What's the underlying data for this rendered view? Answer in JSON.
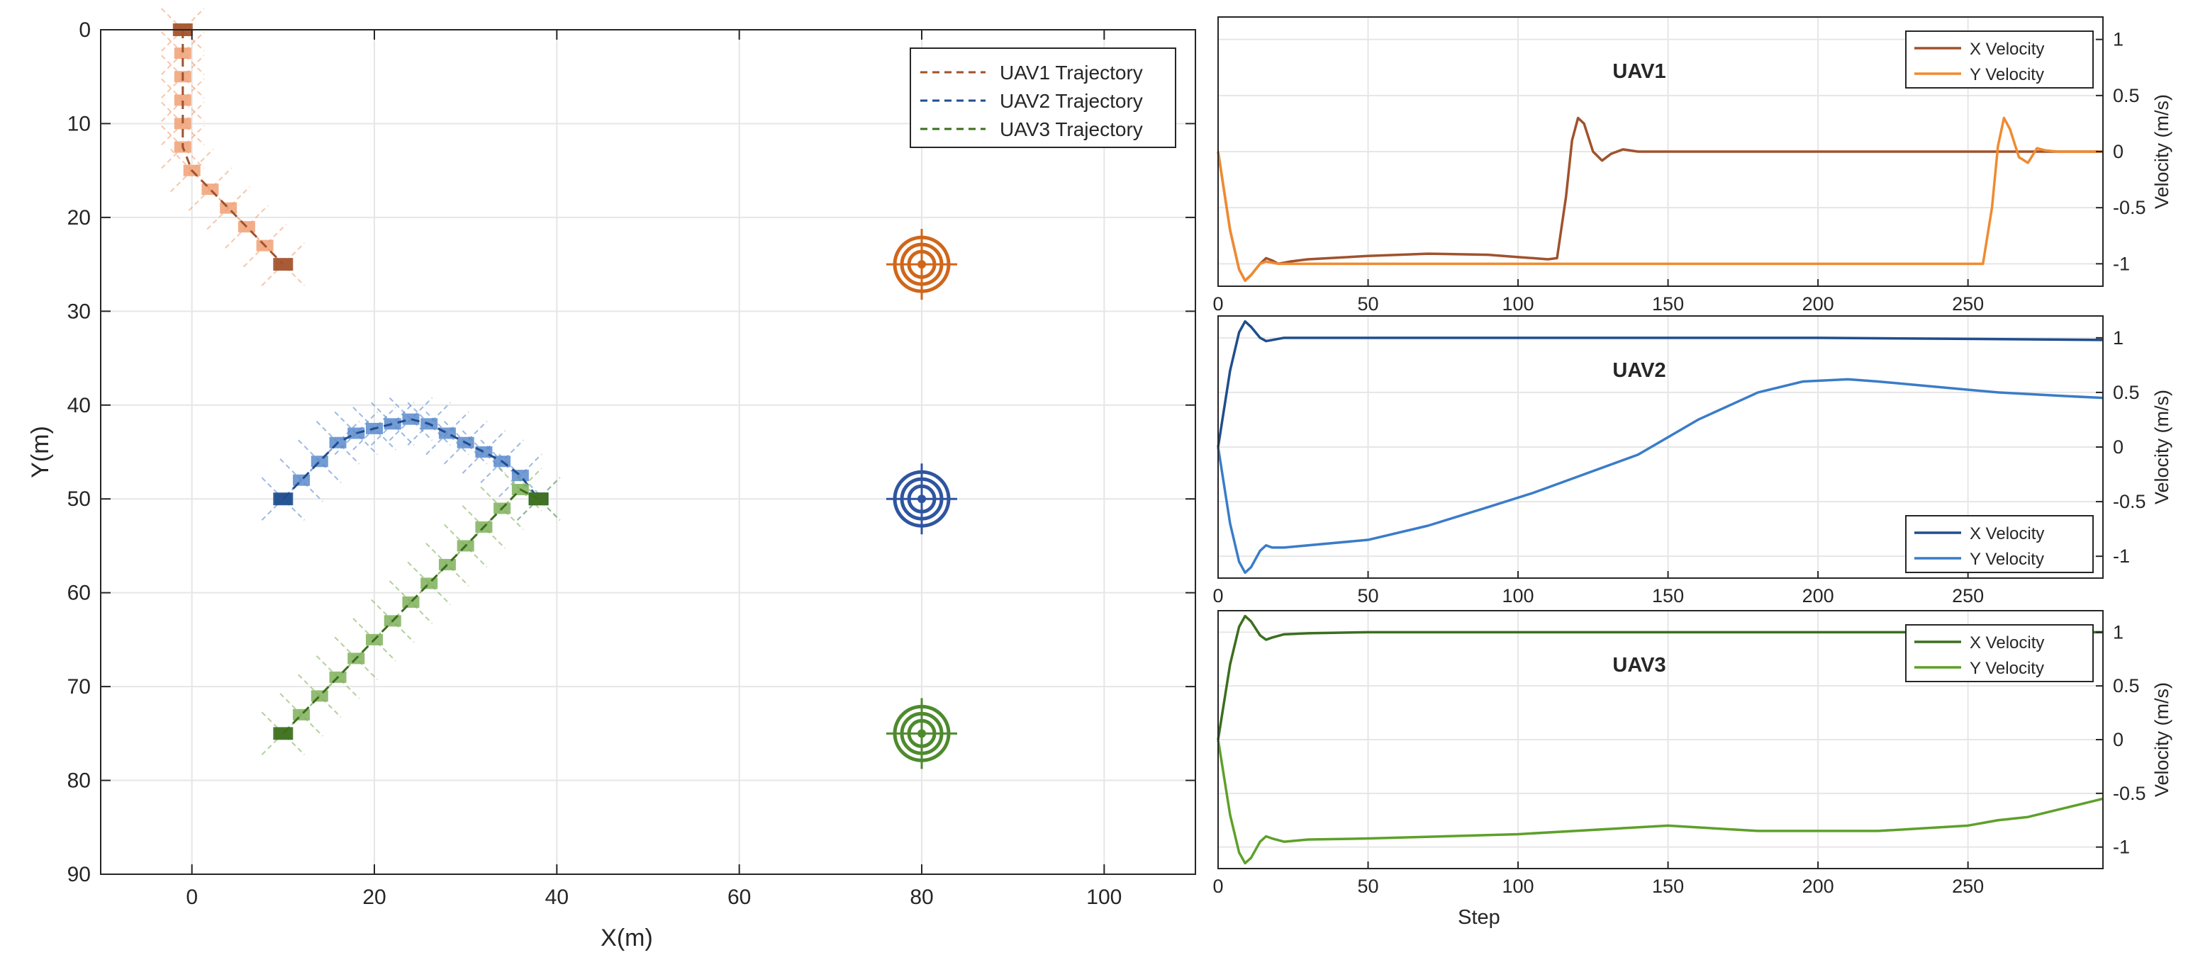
{
  "colors": {
    "uav1": "#A0522D",
    "uav1_light": "#F0A074",
    "uav1_y": "#F08A30",
    "uav2": "#1F4E8C",
    "uav2_light": "#5B8ACD",
    "uav2_y": "#3A7CC8",
    "uav3": "#3C6E1E",
    "uav3_light": "#7FB05A",
    "uav3_y": "#5EA02A",
    "target1": "#D0661A",
    "target2": "#2F55A0",
    "target3": "#4E8A2E",
    "grid": "#E6E6E6",
    "axis": "#262626"
  },
  "chart_data": [
    {
      "type": "scatter",
      "xlabel": "X(m)",
      "ylabel": "Y(m)",
      "xlim": [
        -10,
        110
      ],
      "ylim": [
        0,
        90
      ],
      "y_reversed": true,
      "grid": true,
      "xticks": [
        "0",
        "20",
        "40",
        "60",
        "80",
        "100"
      ],
      "yticks": [
        "0",
        "10",
        "20",
        "30",
        "40",
        "50",
        "60",
        "70",
        "80",
        "90"
      ],
      "legend_position": "top-right",
      "legend": [
        "UAV1 Trajectory",
        "UAV2 Trajectory",
        "UAV3 Trajectory"
      ],
      "series": [
        {
          "name": "UAV1 Trajectory",
          "color": "uav1",
          "x": [
            -1,
            -1,
            -1,
            -1,
            -1,
            -1,
            0,
            2,
            4,
            6,
            8,
            10
          ],
          "y": [
            0,
            2.5,
            5,
            7.5,
            10,
            12.5,
            15,
            17,
            19,
            21,
            23,
            25
          ]
        },
        {
          "name": "UAV2 Trajectory",
          "color": "uav2",
          "x": [
            10,
            12,
            14,
            16,
            18,
            20,
            22,
            24,
            26,
            28,
            30,
            32,
            34,
            36,
            38
          ],
          "y": [
            50,
            48,
            46,
            44,
            43,
            42.5,
            42,
            41.5,
            42,
            43,
            44,
            45,
            46,
            47.5,
            50
          ]
        },
        {
          "name": "UAV3 Trajectory",
          "color": "uav3",
          "x": [
            10,
            12,
            14,
            16,
            18,
            20,
            22,
            24,
            26,
            28,
            30,
            32,
            34,
            36,
            38
          ],
          "y": [
            75,
            73,
            71,
            69,
            67,
            65,
            63,
            61,
            59,
            57,
            55,
            53,
            51,
            49,
            50
          ]
        }
      ],
      "targets": [
        {
          "x": 80,
          "y": 25,
          "color": "target1"
        },
        {
          "x": 80,
          "y": 50,
          "color": "target2"
        },
        {
          "x": 80,
          "y": 75,
          "color": "target3"
        }
      ]
    },
    {
      "type": "line",
      "title": "UAV1",
      "xlim": [
        0,
        295
      ],
      "ylim": [
        -1.2,
        1.2
      ],
      "xticks": [
        "0",
        "50",
        "100",
        "150",
        "200",
        "250"
      ],
      "yticks": [
        "1",
        "0.5",
        "0",
        "-0.5",
        "-1"
      ],
      "ylabel": "Velocity (m/s)",
      "legend_position": "top-right",
      "series": [
        {
          "name": "X Velocity",
          "color": "uav1",
          "x": [
            0,
            4,
            7,
            9,
            11,
            14,
            16,
            18,
            20,
            24,
            30,
            50,
            70,
            90,
            100,
            105,
            110,
            113,
            116,
            118,
            120,
            122,
            125,
            128,
            131,
            135,
            140,
            150,
            200,
            250,
            295
          ],
          "y": [
            0,
            -0.7,
            -1.05,
            -1.15,
            -1.1,
            -1.0,
            -0.95,
            -0.97,
            -1.0,
            -0.98,
            -0.96,
            -0.93,
            -0.91,
            -0.92,
            -0.94,
            -0.95,
            -0.96,
            -0.95,
            -0.4,
            0.1,
            0.3,
            0.25,
            0.0,
            -0.08,
            -0.02,
            0.02,
            0.0,
            0.0,
            0.0,
            0.0,
            0.0
          ]
        },
        {
          "name": "Y Velocity",
          "color": "uav1_y",
          "x": [
            0,
            4,
            7,
            9,
            11,
            14,
            16,
            18,
            20,
            24,
            30,
            100,
            200,
            250,
            255,
            258,
            260,
            262,
            264,
            267,
            270,
            273,
            276,
            280,
            295
          ],
          "y": [
            0,
            -0.7,
            -1.05,
            -1.15,
            -1.1,
            -1.0,
            -0.98,
            -0.99,
            -1.0,
            -1.0,
            -1.0,
            -1.0,
            -1.0,
            -1.0,
            -1.0,
            -0.5,
            0.05,
            0.3,
            0.2,
            -0.05,
            -0.1,
            0.03,
            0.01,
            0.0,
            0.0
          ]
        }
      ]
    },
    {
      "type": "line",
      "title": "UAV2",
      "xlim": [
        0,
        295
      ],
      "ylim": [
        -1.2,
        1.2
      ],
      "xticks": [
        "0",
        "50",
        "100",
        "150",
        "200",
        "250"
      ],
      "yticks": [
        "1",
        "0.5",
        "0",
        "-0.5",
        "-1"
      ],
      "ylabel": "Velocity (m/s)",
      "legend_position": "bottom-right",
      "series": [
        {
          "name": "X Velocity",
          "color": "uav2",
          "x": [
            0,
            4,
            7,
            9,
            11,
            14,
            16,
            18,
            22,
            30,
            50,
            100,
            150,
            200,
            250,
            295
          ],
          "y": [
            0,
            0.7,
            1.05,
            1.15,
            1.1,
            1.0,
            0.97,
            0.98,
            1.0,
            1.0,
            1.0,
            1.0,
            1.0,
            1.0,
            0.99,
            0.98
          ]
        },
        {
          "name": "Y Velocity",
          "color": "uav2_y",
          "x": [
            0,
            4,
            7,
            9,
            11,
            14,
            16,
            18,
            22,
            30,
            50,
            70,
            90,
            105,
            120,
            140,
            160,
            180,
            195,
            210,
            220,
            240,
            260,
            280,
            295
          ],
          "y": [
            0,
            -0.7,
            -1.05,
            -1.15,
            -1.1,
            -0.95,
            -0.9,
            -0.92,
            -0.92,
            -0.9,
            -0.85,
            -0.72,
            -0.55,
            -0.42,
            -0.27,
            -0.07,
            0.25,
            0.5,
            0.6,
            0.62,
            0.6,
            0.55,
            0.5,
            0.47,
            0.45
          ]
        }
      ]
    },
    {
      "type": "line",
      "title": "UAV3",
      "xlim": [
        0,
        295
      ],
      "ylim": [
        -1.2,
        1.2
      ],
      "xticks": [
        "0",
        "50",
        "100",
        "150",
        "200",
        "250"
      ],
      "yticks": [
        "1",
        "0.5",
        "0",
        "-0.5",
        "-1"
      ],
      "ylabel": "Velocity (m/s)",
      "xlabel": "Step",
      "legend_position": "top-right",
      "series": [
        {
          "name": "X Velocity",
          "color": "uav3",
          "x": [
            0,
            4,
            7,
            9,
            11,
            14,
            16,
            18,
            22,
            30,
            50,
            100,
            150,
            200,
            250,
            295
          ],
          "y": [
            0,
            0.7,
            1.05,
            1.15,
            1.1,
            0.97,
            0.93,
            0.95,
            0.98,
            0.99,
            1.0,
            1.0,
            1.0,
            1.0,
            1.0,
            1.0
          ]
        },
        {
          "name": "Y Velocity",
          "color": "uav3_y",
          "x": [
            0,
            4,
            7,
            9,
            11,
            14,
            16,
            18,
            22,
            30,
            50,
            100,
            150,
            180,
            220,
            250,
            260,
            270,
            295
          ],
          "y": [
            0,
            -0.7,
            -1.05,
            -1.15,
            -1.1,
            -0.95,
            -0.9,
            -0.92,
            -0.95,
            -0.93,
            -0.92,
            -0.88,
            -0.8,
            -0.85,
            -0.85,
            -0.8,
            -0.75,
            -0.72,
            -0.55
          ]
        }
      ]
    }
  ]
}
